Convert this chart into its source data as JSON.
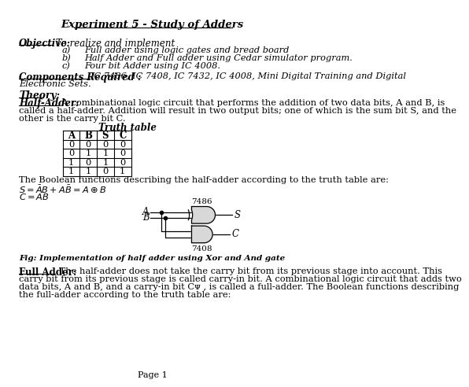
{
  "title": "Experiment 5 - Study of Adders",
  "objective_label": "Objective:",
  "objective_text": " To realize and implement",
  "items": [
    "Full adder using logic gates and bread board",
    "Half Adder and Full adder using Cedar simulator program.",
    "Four bit Adder using IC 4008."
  ],
  "components_label": "Components Required :",
  "components_text": "IC 7486, IC 7408, IC 7432, IC 4008, Mini Digital Training and Digital",
  "components_text2": "Electronic Sets.",
  "theory_label": "Theory:",
  "halfadder_label": "Half-Adder:",
  "halfadder_text1": " A combinational logic circuit that performs the addition of two data bits, A and B, is",
  "halfadder_text2": "called a half-adder. Addition will result in two output bits; one of which is the sum bit S, and the",
  "halfadder_text3": "other is the carry bit C.",
  "truth_table_title": "Truth table",
  "truth_headers": [
    "A",
    "B",
    "S",
    "C"
  ],
  "truth_data": [
    [
      0,
      0,
      0,
      0
    ],
    [
      0,
      1,
      1,
      0
    ],
    [
      1,
      0,
      1,
      0
    ],
    [
      1,
      1,
      0,
      1
    ]
  ],
  "boolean_intro": "The Boolean functions describing the half-adder according to the truth table are:",
  "xor_label": "7486",
  "and_label": "7408",
  "fig_caption": "Fig: Implementation of half adder using Xor and And gate",
  "fulladder_label": "Full Adder:",
  "fulladder_text1": " The half-adder does not take the carry bit from its previous stage into account. This",
  "fulladder_text2": "carry bit from its previous stage is called carry-in bit. A combinational logic circuit that adds two",
  "fulladder_text3": "data bits, A and B, and a carry-in bit Cᴪ , is called a full-adder. The Boolean functions describing",
  "fulladder_text4": "the full-adder according to the truth table are:",
  "page_label": "Page 1",
  "bg_color": "#ffffff",
  "text_color": "#000000",
  "gate_fill": "#d8d8d8"
}
